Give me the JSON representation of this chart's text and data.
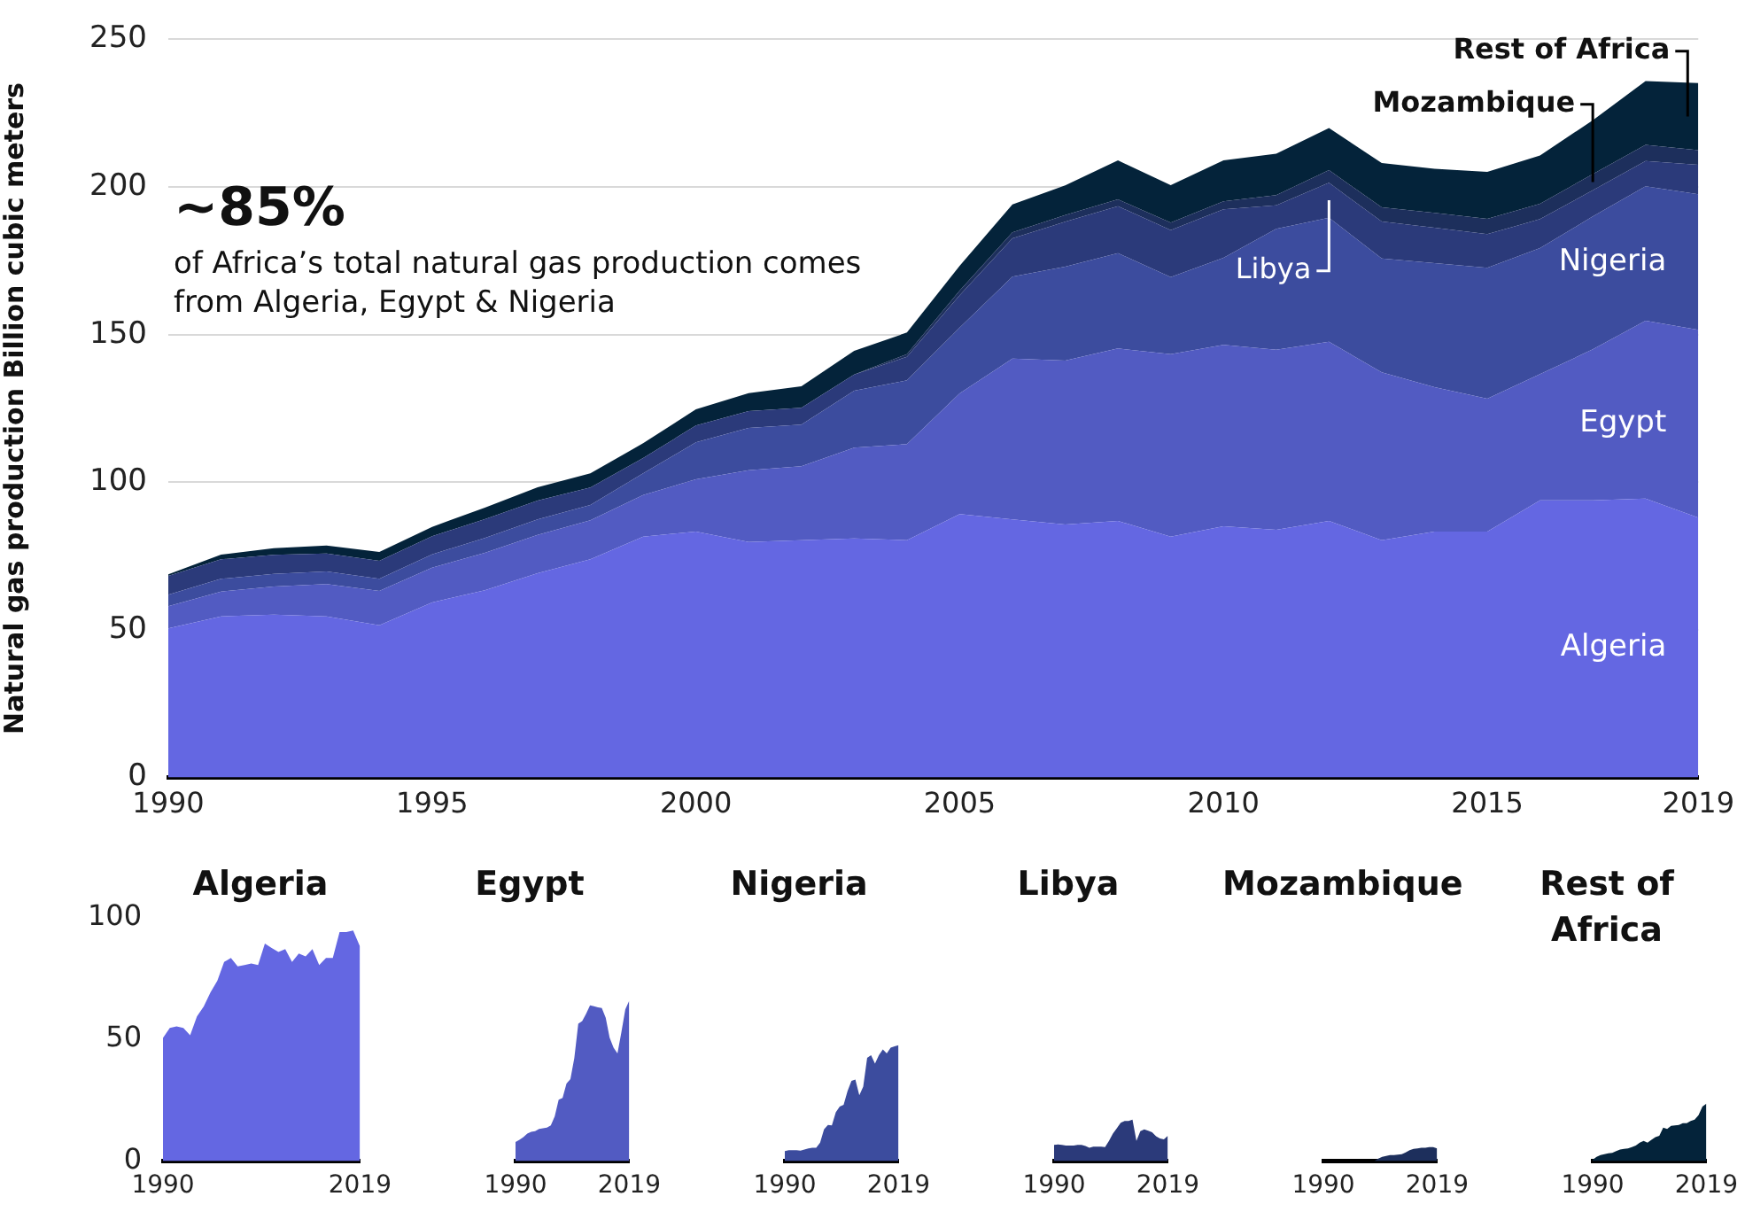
{
  "chart_data": [
    {
      "type": "area",
      "stacked": true,
      "ylabel": "Natural gas production Billion cubic meters",
      "grid": "y",
      "annotations": [
        "~85%",
        "of Africa’s total natural gas production comes from Algeria, Egypt & Nigeria"
      ],
      "x": [
        1990,
        1991,
        1992,
        1993,
        1994,
        1995,
        1996,
        1997,
        1998,
        1999,
        2000,
        2001,
        2002,
        2003,
        2004,
        2005,
        2006,
        2007,
        2008,
        2009,
        2010,
        2011,
        2012,
        2013,
        2014,
        2015,
        2016,
        2017,
        2018,
        2019
      ],
      "xlim": [
        1990,
        2019
      ],
      "xticks": [
        1990,
        1995,
        2000,
        2005,
        2010,
        2015,
        2019
      ],
      "ylim": [
        0,
        250
      ],
      "yticks": [
        0,
        50,
        100,
        150,
        200,
        250
      ],
      "series": [
        {
          "name": "Algeria",
          "color": "#6467e2",
          "values": [
            50.5,
            54.6,
            55.2,
            54.6,
            51.6,
            59.3,
            63.4,
            69.2,
            73.9,
            81.6,
            83.3,
            79.8,
            80.4,
            81,
            80.4,
            89.2,
            87.4,
            85.7,
            86.9,
            81.6,
            85.1,
            83.9,
            86.9,
            80.4,
            83.3,
            83.3,
            93.9,
            93.9,
            94.5,
            88
          ]
        },
        {
          "name": "Egypt",
          "color": "#525bc2",
          "values": [
            7.5,
            8.4,
            9.5,
            10.9,
            11.6,
            11.8,
            12.7,
            13,
            13.2,
            14.1,
            17.7,
            24.3,
            25,
            30.7,
            32.5,
            40.9,
            54.5,
            55.5,
            58.4,
            61.8,
            61.4,
            61,
            60.7,
            56.8,
            48.9,
            45,
            42.7,
            51.1,
            60.2,
            63.6
          ]
        },
        {
          "name": "Nigeria",
          "color": "#3c4c9e",
          "values": [
            3.9,
            4.3,
            4.3,
            4.3,
            4.1,
            4.5,
            5,
            5.2,
            5.2,
            7.3,
            12.5,
            14.3,
            14.1,
            19.3,
            21.6,
            22.3,
            27.7,
            31.8,
            32.3,
            26.1,
            29.5,
            40.9,
            42,
            38.6,
            42,
            44.3,
            42.7,
            45,
            45.5,
            45.9
          ]
        },
        {
          "name": "Libya",
          "color": "#2b3a7a",
          "values": [
            6.4,
            6.6,
            6.4,
            6.1,
            6.1,
            6.1,
            6.4,
            6.4,
            5.9,
            5.2,
            5.7,
            5.7,
            5.7,
            5.5,
            8,
            10.9,
            13,
            15.2,
            15.9,
            15.9,
            16.4,
            8,
            11.8,
            12.5,
            12,
            11.4,
            9.8,
            8.9,
            8.6,
            10
          ]
        },
        {
          "name": "Mozambique",
          "color": "#1d2f5c",
          "values": [
            0,
            0,
            0,
            0,
            0,
            0,
            0,
            0,
            0,
            0,
            0,
            0,
            0,
            0,
            0.9,
            1.6,
            2,
            2.3,
            2.3,
            2.5,
            2.7,
            3.4,
            4.3,
            4.8,
            5,
            5.2,
            5.2,
            5.5,
            5.5,
            5
          ]
        },
        {
          "name": "Rest of Africa",
          "color": "#04233a",
          "values": [
            0.5,
            1.6,
            2.3,
            2.7,
            3,
            3.2,
            3.9,
            4.5,
            4.8,
            5,
            5.5,
            6.1,
            7.3,
            8,
            7.3,
            8.4,
            9.5,
            10,
            13.2,
            12.7,
            13.9,
            14.1,
            14.3,
            15,
            15,
            15.9,
            16.4,
            18.2,
            21.6,
            22.7
          ]
        }
      ]
    },
    {
      "type": "area",
      "title": "Algeria",
      "x": [
        1990,
        1991,
        1992,
        1993,
        1994,
        1995,
        1996,
        1997,
        1998,
        1999,
        2000,
        2001,
        2002,
        2003,
        2004,
        2005,
        2006,
        2007,
        2008,
        2009,
        2010,
        2011,
        2012,
        2013,
        2014,
        2015,
        2016,
        2017,
        2018,
        2019
      ],
      "xlim": [
        1990,
        2019
      ],
      "xticks": [
        1990,
        2019
      ],
      "ylim": [
        0,
        100
      ],
      "yticks": [
        0,
        50,
        100
      ],
      "series": [
        {
          "color": "#6467e2",
          "values": [
            50.5,
            54.6,
            55.2,
            54.6,
            51.6,
            59.3,
            63.4,
            69.2,
            73.9,
            81.6,
            83.3,
            79.8,
            80.4,
            81,
            80.4,
            89.2,
            87.4,
            85.7,
            86.9,
            81.6,
            85.1,
            83.9,
            86.9,
            80.4,
            83.3,
            83.3,
            93.9,
            93.9,
            94.5,
            88
          ]
        }
      ]
    },
    {
      "type": "area",
      "title": "Egypt",
      "tick_labels": "x",
      "x": [
        1990,
        1991,
        1992,
        1993,
        1994,
        1995,
        1996,
        1997,
        1998,
        1999,
        2000,
        2001,
        2002,
        2003,
        2004,
        2005,
        2006,
        2007,
        2008,
        2009,
        2010,
        2011,
        2012,
        2013,
        2014,
        2015,
        2016,
        2017,
        2018,
        2019
      ],
      "xlim": [
        1990,
        2019
      ],
      "xticks": [
        1990,
        2019
      ],
      "ylim": [
        0,
        100
      ],
      "series": [
        {
          "color": "#525bc2",
          "values": [
            7.5,
            8.4,
            9.5,
            10.9,
            11.6,
            11.8,
            12.7,
            13,
            13.2,
            14.1,
            17.7,
            24.3,
            25,
            30.7,
            32.5,
            40.9,
            54.5,
            55.5,
            58.4,
            61.8,
            61.4,
            61,
            60.7,
            56.8,
            48.9,
            45,
            42.7,
            51.1,
            60.2,
            63.6
          ]
        }
      ]
    },
    {
      "type": "area",
      "title": "Nigeria",
      "tick_labels": "x",
      "x": [
        1990,
        1991,
        1992,
        1993,
        1994,
        1995,
        1996,
        1997,
        1998,
        1999,
        2000,
        2001,
        2002,
        2003,
        2004,
        2005,
        2006,
        2007,
        2008,
        2009,
        2010,
        2011,
        2012,
        2013,
        2014,
        2015,
        2016,
        2017,
        2018,
        2019
      ],
      "xlim": [
        1990,
        2019
      ],
      "xticks": [
        1990,
        2019
      ],
      "ylim": [
        0,
        100
      ],
      "series": [
        {
          "color": "#3c4c9e",
          "values": [
            3.9,
            4.3,
            4.3,
            4.3,
            4.1,
            4.5,
            5,
            5.2,
            5.2,
            7.3,
            12.5,
            14.3,
            14.1,
            19.3,
            21.6,
            22.3,
            27.7,
            31.8,
            32.3,
            26.1,
            29.5,
            40.9,
            42,
            38.6,
            42,
            44.3,
            42.7,
            45,
            45.5,
            45.9
          ]
        }
      ]
    },
    {
      "type": "area",
      "title": "Libya",
      "tick_labels": "x",
      "x": [
        1990,
        1991,
        1992,
        1993,
        1994,
        1995,
        1996,
        1997,
        1998,
        1999,
        2000,
        2001,
        2002,
        2003,
        2004,
        2005,
        2006,
        2007,
        2008,
        2009,
        2010,
        2011,
        2012,
        2013,
        2014,
        2015,
        2016,
        2017,
        2018,
        2019
      ],
      "xlim": [
        1990,
        2019
      ],
      "xticks": [
        1990,
        2019
      ],
      "ylim": [
        0,
        100
      ],
      "series": [
        {
          "color": "#2b3a7a",
          "values": [
            6.4,
            6.6,
            6.4,
            6.1,
            6.1,
            6.1,
            6.4,
            6.4,
            5.9,
            5.2,
            5.7,
            5.7,
            5.7,
            5.5,
            8,
            10.9,
            13,
            15.2,
            15.9,
            15.9,
            16.4,
            8,
            11.8,
            12.5,
            12,
            11.4,
            9.8,
            8.9,
            8.6,
            10
          ]
        }
      ]
    },
    {
      "type": "area",
      "title": "Mozambique",
      "tick_labels": "x",
      "x": [
        1990,
        1991,
        1992,
        1993,
        1994,
        1995,
        1996,
        1997,
        1998,
        1999,
        2000,
        2001,
        2002,
        2003,
        2004,
        2005,
        2006,
        2007,
        2008,
        2009,
        2010,
        2011,
        2012,
        2013,
        2014,
        2015,
        2016,
        2017,
        2018,
        2019
      ],
      "xlim": [
        1990,
        2019
      ],
      "xticks": [
        1990,
        2019
      ],
      "ylim": [
        0,
        100
      ],
      "series": [
        {
          "color": "#1d2f5c",
          "values": [
            0,
            0,
            0,
            0,
            0,
            0,
            0,
            0,
            0,
            0,
            0,
            0,
            0,
            0,
            0.9,
            1.6,
            2,
            2.3,
            2.3,
            2.5,
            2.7,
            3.4,
            4.3,
            4.8,
            5,
            5.2,
            5.2,
            5.5,
            5.5,
            5
          ]
        }
      ]
    },
    {
      "type": "area",
      "title": "Rest of Africa",
      "tick_labels": "x",
      "x": [
        1990,
        1991,
        1992,
        1993,
        1994,
        1995,
        1996,
        1997,
        1998,
        1999,
        2000,
        2001,
        2002,
        2003,
        2004,
        2005,
        2006,
        2007,
        2008,
        2009,
        2010,
        2011,
        2012,
        2013,
        2014,
        2015,
        2016,
        2017,
        2018,
        2019
      ],
      "xlim": [
        1990,
        2019
      ],
      "xticks": [
        1990,
        2019
      ],
      "ylim": [
        0,
        100
      ],
      "series": [
        {
          "color": "#04233a",
          "values": [
            0.5,
            1.6,
            2.3,
            2.7,
            3,
            3.2,
            3.9,
            4.5,
            4.8,
            5,
            5.5,
            6.1,
            7.3,
            8,
            7.3,
            8.4,
            9.5,
            10,
            13.2,
            12.7,
            13.9,
            14.1,
            14.3,
            15,
            15,
            15.9,
            16.4,
            18.2,
            21.6,
            22.7
          ]
        }
      ]
    }
  ]
}
